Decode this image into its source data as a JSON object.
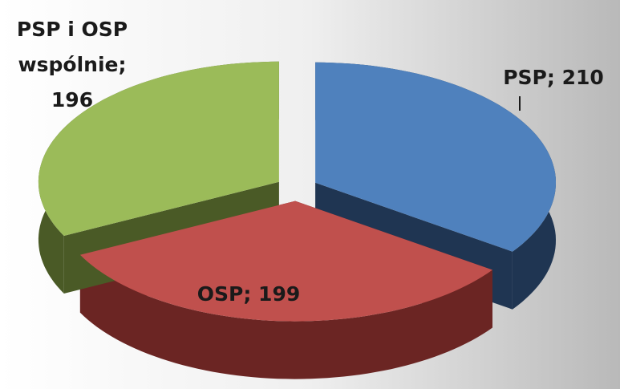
{
  "chart_data": {
    "type": "pie3d",
    "values": [
      210,
      199,
      196
    ],
    "value_labels": [
      "PSP; 210",
      "OSP; 199",
      "PSP i OSP wspólnie; 196"
    ],
    "colors": [
      "#4f81bd",
      "#c0504d",
      "#9bbb59"
    ],
    "side_colors": [
      "#1f3552",
      "#6b2523",
      "#4a5a26"
    ]
  }
}
